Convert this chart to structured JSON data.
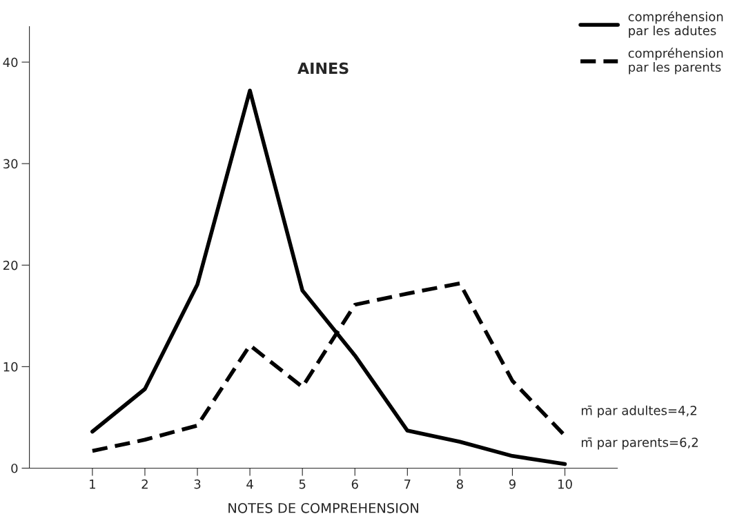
{
  "chart_data": {
    "type": "line",
    "title": "AINES",
    "xlabel": "NOTES DE COMPREHENSION",
    "x": [
      1,
      2,
      3,
      4,
      5,
      6,
      7,
      8,
      9,
      10
    ],
    "series": [
      {
        "name": "compréhension\npar les adutes",
        "color": "#000000",
        "line_style": "solid",
        "values": [
          3.6,
          7.8,
          18.1,
          37.2,
          17.5,
          11.1,
          3.7,
          2.6,
          1.2,
          0.4
        ]
      },
      {
        "name": "compréhension\npar les parents",
        "color": "#000000",
        "line_style": "dashed",
        "values": [
          1.7,
          2.8,
          4.2,
          12.1,
          8.0,
          16.1,
          17.2,
          18.2,
          8.6,
          3.2
        ]
      }
    ],
    "xlim": [
      -0.2,
      11
    ],
    "ylim": [
      0,
      43.5
    ],
    "xticks": [
      1,
      2,
      3,
      4,
      5,
      6,
      7,
      8,
      9,
      10
    ],
    "yticks": [
      0,
      10,
      20,
      30,
      40
    ],
    "grid": false,
    "legend": "top right",
    "marker": "none",
    "annotations": [
      "m̄ par adultes=4,2",
      "m̄ par parents=6,2"
    ]
  }
}
